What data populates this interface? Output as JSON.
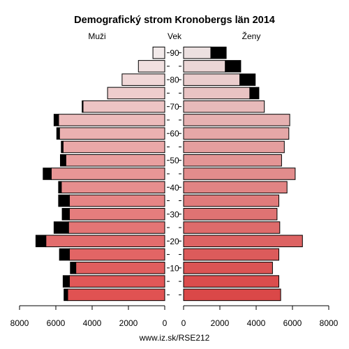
{
  "chart_data": {
    "type": "bar",
    "subtype": "population-pyramid",
    "title": "Demografický strom Kronobergs län 2014",
    "footer": "www.iz.sk/RSE212",
    "left_label": "Muži",
    "center_label": "Vek",
    "right_label": "Ženy",
    "age_tick_labels": [
      "10",
      "20",
      "30",
      "40",
      "50",
      "60",
      "70",
      "80",
      "90"
    ],
    "x_tick_labels": [
      "8000",
      "6000",
      "4000",
      "2000",
      "0",
      "0",
      "2000",
      "4000",
      "6000",
      "8000"
    ],
    "xlim": [
      0,
      8000
    ],
    "age_groups": [
      "0-4",
      "5-9",
      "10-14",
      "15-19",
      "20-24",
      "25-29",
      "30-34",
      "35-39",
      "40-44",
      "45-49",
      "50-54",
      "55-59",
      "60-64",
      "65-69",
      "70-74",
      "75-79",
      "80-84",
      "85-89",
      "90+"
    ],
    "series": [
      {
        "name": "Muži",
        "values": [
          5350,
          5250,
          4900,
          5250,
          6550,
          5300,
          5250,
          5250,
          5700,
          6250,
          5450,
          5600,
          5800,
          5850,
          4500,
          3150,
          2350,
          1450,
          650
        ],
        "surplus": [
          200,
          350,
          300,
          550,
          550,
          800,
          400,
          600,
          150,
          450,
          300,
          100,
          150,
          250,
          50,
          0,
          0,
          0,
          0
        ]
      },
      {
        "name": "Ženy",
        "values": [
          5350,
          5250,
          4900,
          5250,
          6550,
          5300,
          5150,
          5250,
          5700,
          6150,
          5400,
          5550,
          5800,
          5850,
          4450,
          3650,
          3100,
          2300,
          1500
        ],
        "surplus": [
          0,
          0,
          0,
          0,
          0,
          0,
          0,
          0,
          0,
          0,
          0,
          0,
          0,
          0,
          0,
          500,
          850,
          850,
          850
        ]
      }
    ],
    "colors": {
      "young": "#e05252",
      "old": "#f2eaea",
      "surplus": "#000000",
      "outline": "#000000"
    },
    "grid": false
  }
}
